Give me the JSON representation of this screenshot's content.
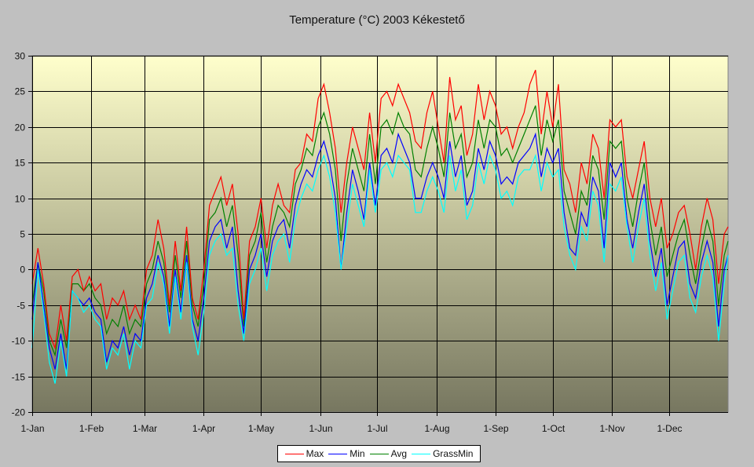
{
  "chart_data": {
    "type": "line",
    "title": "Temperature (°C) 2003 Kékestető",
    "xlabel": "",
    "ylabel": "",
    "ylim": [
      -20,
      30
    ],
    "yticks": [
      30,
      25,
      20,
      15,
      10,
      5,
      0,
      -5,
      -10,
      -15,
      -20
    ],
    "x_unit": "day-of-year",
    "x_range": [
      0,
      365
    ],
    "x_sample_step_days": 3,
    "xticks": [
      {
        "label": "1-Jan",
        "day": 0
      },
      {
        "label": "1-Feb",
        "day": 31
      },
      {
        "label": "1-Mar",
        "day": 59
      },
      {
        "label": "1-Apr",
        "day": 90
      },
      {
        "label": "1-May",
        "day": 120
      },
      {
        "label": "1-Jun",
        "day": 151
      },
      {
        "label": "1-Jul",
        "day": 181
      },
      {
        "label": "1-Aug",
        "day": 212
      },
      {
        "label": "1-Sep",
        "day": 243
      },
      {
        "label": "1-Oct",
        "day": 273
      },
      {
        "label": "1-Nov",
        "day": 304
      },
      {
        "label": "1-Dec",
        "day": 334
      }
    ],
    "grid": true,
    "legend_position": "bottom-center",
    "background_gradient": [
      "#ffffcc",
      "#777760"
    ],
    "series": [
      {
        "name": "Max",
        "color": "#ff0000",
        "values": [
          -2,
          3,
          -2,
          -9,
          -11,
          -5,
          -10,
          -1,
          0,
          -3,
          -1,
          -3,
          -2,
          -7,
          -4,
          -5,
          -3,
          -7,
          -5,
          -7,
          0,
          2,
          7,
          3,
          -5,
          4,
          -3,
          6,
          -4,
          -7,
          0,
          9,
          11,
          13,
          9,
          12,
          5,
          -7,
          4,
          6,
          10,
          3,
          9,
          12,
          9,
          8,
          14,
          15,
          19,
          18,
          24,
          26,
          22,
          17,
          8,
          15,
          20,
          17,
          14,
          22,
          15,
          24,
          25,
          23,
          26,
          24,
          22,
          18,
          17,
          22,
          25,
          20,
          15,
          27,
          21,
          23,
          16,
          19,
          26,
          21,
          25,
          23,
          19,
          20,
          17,
          20,
          22,
          26,
          28,
          19,
          25,
          20,
          26,
          14,
          12,
          8,
          15,
          12,
          19,
          17,
          10,
          21,
          20,
          21,
          13,
          10,
          14,
          18,
          10,
          6,
          10,
          3,
          5,
          8,
          9,
          5,
          0,
          6,
          10,
          7,
          -2,
          5,
          6
        ]
      },
      {
        "name": "Min",
        "color": "#0000ff",
        "values": [
          -7,
          1,
          -5,
          -11,
          -14,
          -9,
          -14,
          -3,
          -4,
          -5,
          -4,
          -6,
          -7,
          -13,
          -10,
          -11,
          -8,
          -12,
          -9,
          -10,
          -4,
          -2,
          2,
          -1,
          -8,
          0,
          -6,
          2,
          -7,
          -10,
          -4,
          4,
          6,
          7,
          3,
          6,
          -3,
          -9,
          0,
          2,
          5,
          -1,
          4,
          6,
          7,
          3,
          9,
          12,
          14,
          13,
          16,
          18,
          15,
          10,
          0,
          8,
          14,
          11,
          7,
          15,
          9,
          16,
          17,
          15,
          19,
          17,
          15,
          10,
          10,
          13,
          15,
          13,
          10,
          18,
          13,
          16,
          9,
          11,
          17,
          14,
          18,
          16,
          12,
          13,
          12,
          15,
          16,
          17,
          19,
          13,
          17,
          15,
          17,
          8,
          3,
          2,
          8,
          6,
          13,
          11,
          3,
          15,
          13,
          15,
          7,
          3,
          8,
          12,
          4,
          -1,
          3,
          -5,
          -1,
          3,
          4,
          -2,
          -4,
          1,
          4,
          1,
          -8,
          0,
          2
        ]
      },
      {
        "name": "Avg",
        "color": "#008000",
        "values": [
          -5,
          1,
          -3,
          -10,
          -12,
          -7,
          -11,
          -2,
          -2,
          -3,
          -2,
          -4,
          -5,
          -9,
          -7,
          -8,
          -5,
          -9,
          -7,
          -8,
          -2,
          0,
          4,
          1,
          -6,
          2,
          -4,
          4,
          -5,
          -8,
          -2,
          7,
          8,
          10,
          6,
          9,
          2,
          -8,
          2,
          4,
          8,
          1,
          6,
          9,
          8,
          6,
          12,
          14,
          17,
          16,
          20,
          22,
          19,
          14,
          4,
          12,
          17,
          14,
          11,
          19,
          12,
          20,
          21,
          19,
          22,
          20,
          19,
          14,
          13,
          17,
          20,
          17,
          13,
          22,
          17,
          19,
          13,
          15,
          21,
          17,
          21,
          20,
          16,
          17,
          15,
          17,
          19,
          21,
          23,
          16,
          21,
          18,
          21,
          11,
          8,
          5,
          11,
          9,
          16,
          14,
          7,
          18,
          17,
          18,
          10,
          6,
          11,
          15,
          7,
          2,
          6,
          -1,
          2,
          5,
          7,
          2,
          -2,
          3,
          7,
          4,
          -5,
          2,
          4
        ]
      },
      {
        "name": "GrassMin",
        "color": "#00ffff",
        "values": [
          -11,
          0,
          -6,
          -13,
          -16,
          -10,
          -15,
          -3,
          -4,
          -6,
          -5,
          -7,
          -8,
          -14,
          -11,
          -12,
          -9,
          -14,
          -10,
          -11,
          -5,
          -4,
          1,
          -2,
          -9,
          -1,
          -7,
          1,
          -8,
          -12,
          -6,
          2,
          4,
          5,
          2,
          3,
          -5,
          -10,
          -2,
          0,
          3,
          -3,
          2,
          4,
          5,
          1,
          7,
          10,
          12,
          11,
          14,
          16,
          13,
          8,
          0,
          6,
          12,
          9,
          6,
          14,
          8,
          14,
          15,
          13,
          16,
          15,
          14,
          8,
          8,
          11,
          13,
          11,
          8,
          16,
          11,
          14,
          7,
          9,
          15,
          12,
          16,
          14,
          10,
          11,
          9,
          13,
          14,
          14,
          16,
          11,
          15,
          13,
          14,
          6,
          2,
          0,
          6,
          4,
          11,
          9,
          1,
          12,
          11,
          13,
          6,
          1,
          6,
          10,
          2,
          -3,
          1,
          -7,
          -3,
          1,
          2,
          -4,
          -6,
          -1,
          2,
          -1,
          -10,
          -2,
          2
        ]
      }
    ]
  }
}
